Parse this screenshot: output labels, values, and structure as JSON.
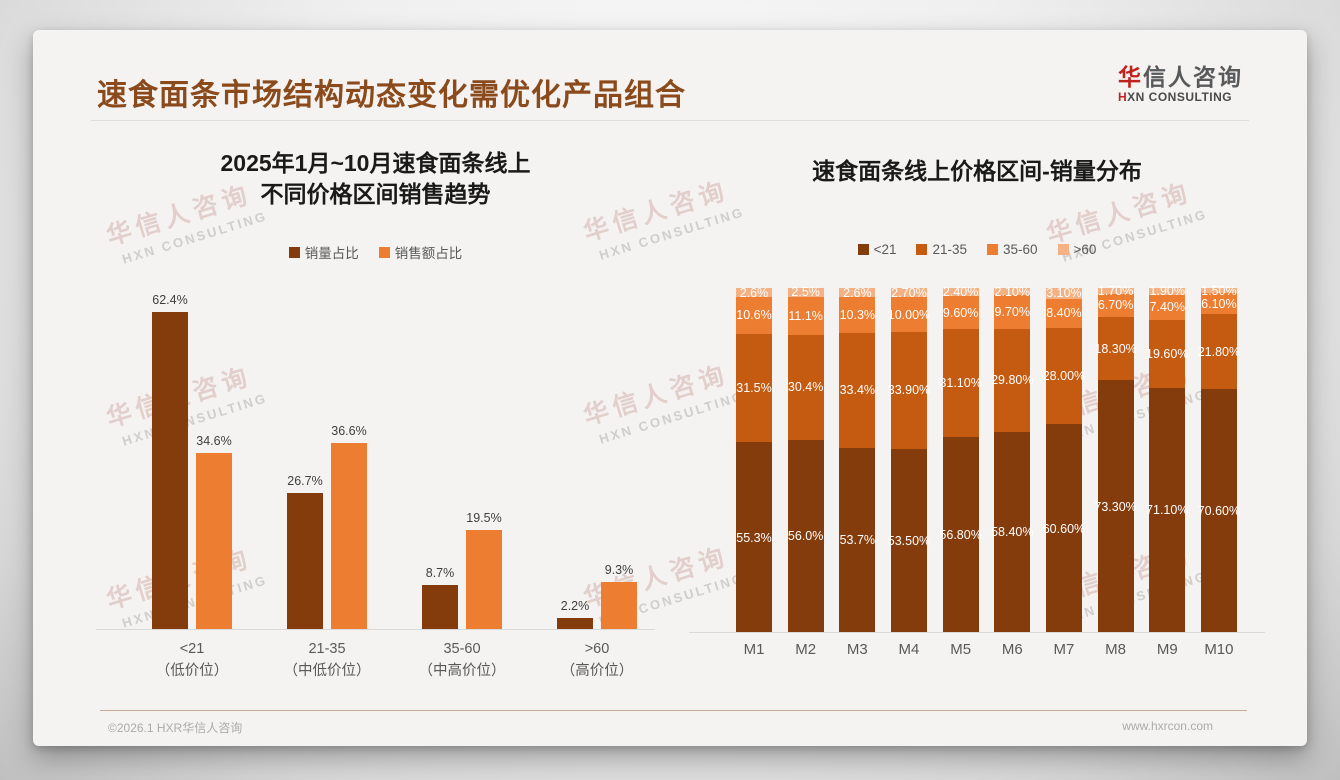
{
  "header": {
    "title": "速食面条市场结构动态变化需优化产品组合",
    "logo": {
      "cn_accent": "华",
      "cn_rest": "信人咨询",
      "en_accent": "H",
      "en_rest": "XN CONSULTING"
    }
  },
  "watermark": {
    "line1": "华信人咨询",
    "line2": "HXN CONSULTING"
  },
  "footer": {
    "copyright": "©2026.1 HXR华信人咨询",
    "website": "www.hxrcon.com"
  },
  "colors": {
    "title_accent": "#8b4a1b",
    "logo_red": "#c0221e",
    "dark_brown": "#843C0C",
    "mid_brown": "#C55A11",
    "orange": "#ED7D31",
    "light_peach": "#F4B183"
  },
  "chart_data": [
    {
      "id": "left",
      "type": "bar",
      "title": "2025年1月~10月速食面条线上 不同价格区间销售趋势",
      "title_lines": [
        "2025年1月~10月速食面条线上",
        "不同价格区间销售趋势"
      ],
      "legend_position": "top",
      "grid": false,
      "ylim": [
        0,
        70
      ],
      "categories": [
        "<21",
        "21-35",
        "35-60",
        ">60"
      ],
      "category_sublabels": [
        "（低价位）",
        "（中低价位）",
        "（中高价位）",
        "（高价位）"
      ],
      "series": [
        {
          "name": "销量占比",
          "color": "#843C0C",
          "values": [
            62.4,
            26.7,
            8.7,
            2.2
          ],
          "labels": [
            "62.4%",
            "26.7%",
            "8.7%",
            "2.2%"
          ]
        },
        {
          "name": "销售额占比",
          "color": "#ED7D31",
          "values": [
            34.6,
            36.6,
            19.5,
            9.3
          ],
          "labels": [
            "34.6%",
            "36.6%",
            "19.5%",
            "9.3%"
          ]
        }
      ]
    },
    {
      "id": "right",
      "type": "stacked-bar",
      "title": "速食面条线上价格区间-销量分布",
      "legend_position": "top",
      "grid": false,
      "ylim": [
        0,
        100
      ],
      "stack_order": "bottom-to-top",
      "categories": [
        "M1",
        "M2",
        "M3",
        "M4",
        "M5",
        "M6",
        "M7",
        "M8",
        "M9",
        "M10"
      ],
      "series": [
        {
          "name": "<21",
          "color": "#843C0C",
          "values": [
            55.3,
            56.0,
            53.7,
            53.5,
            56.8,
            58.4,
            60.6,
            73.3,
            71.1,
            70.6
          ],
          "labels": [
            "55.3%",
            "56.0%",
            "53.7%",
            "53.50%",
            "56.80%",
            "58.40%",
            "60.60%",
            "73.30%",
            "71.10%",
            "70.60%"
          ]
        },
        {
          "name": "21-35",
          "color": "#C55A11",
          "values": [
            31.5,
            30.4,
            33.4,
            33.9,
            31.1,
            29.8,
            28.0,
            18.3,
            19.6,
            21.8
          ],
          "labels": [
            "31.5%",
            "30.4%",
            "33.4%",
            "33.90%",
            "31.10%",
            "29.80%",
            "28.00%",
            "18.30%",
            "19.60%",
            "21.80%"
          ]
        },
        {
          "name": "35-60",
          "color": "#ED7D31",
          "values": [
            10.6,
            11.1,
            10.3,
            10.0,
            9.6,
            9.7,
            8.4,
            6.7,
            7.4,
            6.1
          ],
          "labels": [
            "10.6%",
            "11.1%",
            "10.3%",
            "10.00%",
            "9.60%",
            "9.70%",
            "8.40%",
            "6.70%",
            "7.40%",
            "6.10%"
          ]
        },
        {
          "name": ">60",
          "color": "#F4B183",
          "values": [
            2.6,
            2.5,
            2.6,
            2.7,
            2.4,
            2.1,
            3.1,
            1.7,
            1.9,
            1.5
          ],
          "labels": [
            "2.6%",
            "2.5%",
            "2.6%",
            "2.70%",
            "2.40%",
            "2.10%",
            "3.10%",
            "1.70%",
            "1.90%",
            "1.50%"
          ]
        }
      ]
    }
  ]
}
